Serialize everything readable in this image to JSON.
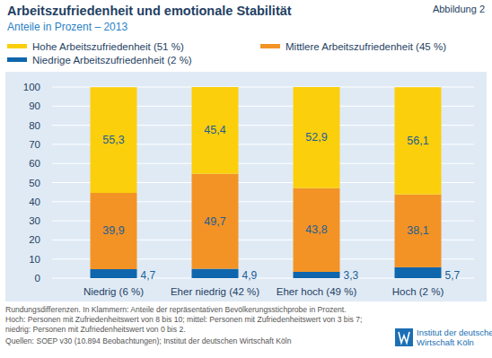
{
  "chart_data": {
    "type": "bar",
    "stacked": true,
    "data_labels": true,
    "grid": true,
    "legend": "top-left",
    "figure_label": "Abbildung 2",
    "title": "Arbeitszufriedenheit und emotionale Stabilität",
    "subtitle": "Anteile in Prozent – 2013",
    "categories": [
      "Niedrig (6 %)",
      "Eher niedrig (42 %)",
      "Eher hoch (49 %)",
      "Hoch (2 %)"
    ],
    "series": [
      {
        "name": "Hohe Arbeitszufriedenheit (51 %)",
        "color": "#fbcf0c",
        "values": [
          55.3,
          45.4,
          52.9,
          56.1
        ],
        "value_labels": [
          "55,3",
          "45,4",
          "52,9",
          "56,1"
        ]
      },
      {
        "name": "Mittlere Arbeitszufriedenheit (45 %)",
        "color": "#f39325",
        "values": [
          39.9,
          49.7,
          43.8,
          38.1
        ],
        "value_labels": [
          "39,9",
          "49,7",
          "43,8",
          "38,1"
        ]
      },
      {
        "name": "Niedrige Arbeitszufriedenheit (2 %)",
        "color": "#0f66ad",
        "values": [
          4.7,
          4.9,
          3.3,
          5.7
        ],
        "value_labels": [
          "4,7",
          "4,9",
          "3,3",
          "5,7"
        ]
      }
    ],
    "ylim": [
      0,
      100
    ],
    "yticks": [
      0,
      10,
      20,
      30,
      40,
      50,
      60,
      70,
      80,
      90,
      100
    ],
    "notes": [
      "Rundungsdifferenzen. In Klammern: Anteile der repräsentativen Bevölkerungsstichprobe in Prozent.",
      "Hoch: Personen mit Zufriedenheitswert von 8 bis 10; mittel: Personen mit Zufriedenheitswert von 3 bis 7;",
      "niedrig: Personen mit Zufriedenheitswert von 0 bis 2.",
      "Quellen: SOEP v30 (10.894 Beobachtungen); Institut der deutschen Wirtschaft Köln"
    ],
    "logo_text": [
      "Institut der deutschen",
      "Wirtschaft Köln"
    ]
  }
}
